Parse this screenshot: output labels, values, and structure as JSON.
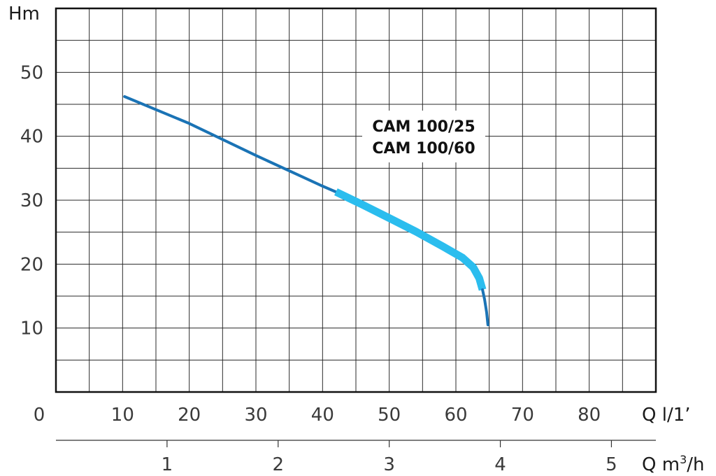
{
  "chart_data": {
    "type": "line",
    "y_label": "Hm",
    "x_label": "Q l/1’",
    "x2_label_prefix": "Q m",
    "x2_label_sup": "3",
    "x2_label_suffix": "/h",
    "x_origin_label": "0",
    "x_ticks": [
      "10",
      "20",
      "30",
      "40",
      "50",
      "60",
      "70",
      "80"
    ],
    "x2_ticks": [
      "1",
      "2",
      "3",
      "4",
      "5"
    ],
    "y_ticks": [
      "10",
      "20",
      "30",
      "40",
      "50"
    ],
    "xlim": [
      0,
      90
    ],
    "ylim": [
      0,
      60
    ],
    "grid": true,
    "annotation_lines": [
      "CAM 100/25",
      "CAM 100/60"
    ],
    "colors": {
      "curve_dark": "#1a73b5",
      "curve_light": "#2bbdee",
      "grid": "#2a2a2a",
      "frame": "#111111"
    },
    "series": [
      {
        "style": "full-range",
        "points": [
          [
            10.3,
            46.2
          ],
          [
            20,
            42
          ],
          [
            30,
            37
          ],
          [
            40,
            32.2
          ],
          [
            42,
            31.3
          ]
        ]
      },
      {
        "style": "operating-range",
        "points": [
          [
            42,
            31.3
          ],
          [
            46,
            29.3
          ],
          [
            50,
            27.2
          ],
          [
            54,
            25.1
          ],
          [
            58,
            22.8
          ],
          [
            61,
            21
          ],
          [
            62.6,
            19.5
          ],
          [
            63.5,
            17.8
          ],
          [
            64,
            16
          ]
        ]
      },
      {
        "style": "full-range",
        "points": [
          [
            64,
            16
          ],
          [
            64.3,
            14.5
          ],
          [
            64.6,
            12.5
          ],
          [
            64.8,
            10.5
          ]
        ]
      }
    ]
  }
}
